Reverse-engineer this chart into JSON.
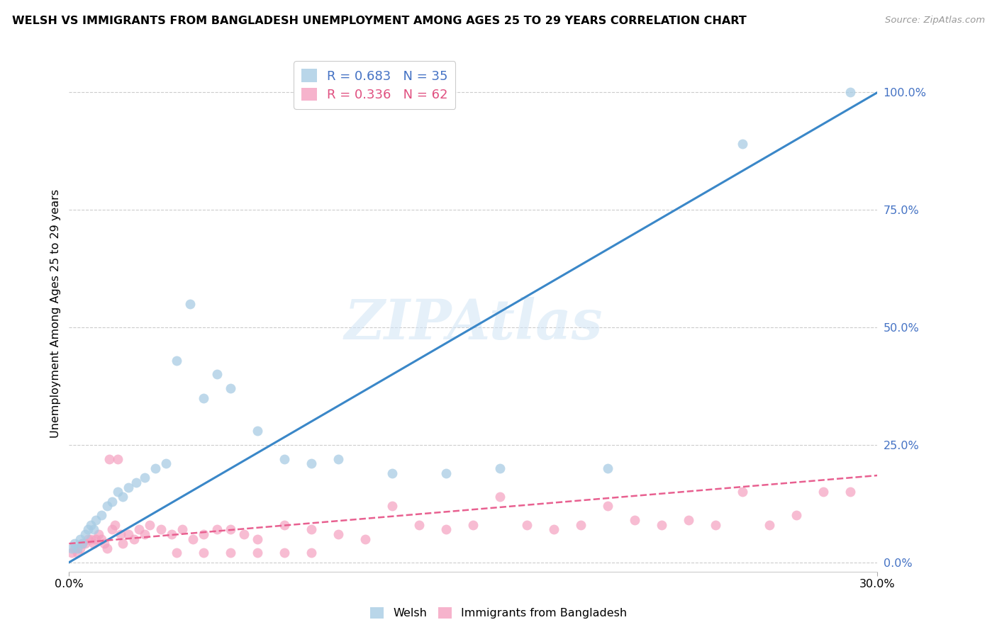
{
  "title": "WELSH VS IMMIGRANTS FROM BANGLADESH UNEMPLOYMENT AMONG AGES 25 TO 29 YEARS CORRELATION CHART",
  "source": "Source: ZipAtlas.com",
  "ylabel": "Unemployment Among Ages 25 to 29 years",
  "xlim": [
    0.0,
    0.3
  ],
  "ylim": [
    -0.02,
    1.08
  ],
  "welsh_R": 0.683,
  "welsh_N": 35,
  "bangladesh_R": 0.336,
  "bangladesh_N": 62,
  "welsh_color": "#a8cce4",
  "bangladesh_color": "#f4a0c0",
  "welsh_line_color": "#3a87c8",
  "bangladesh_line_color": "#e86090",
  "watermark": "ZIPAtlas",
  "welsh_line_x0": 0.0,
  "welsh_line_y0": 0.0,
  "welsh_line_x1": 0.3,
  "welsh_line_y1": 1.0,
  "bangladesh_line_x0": 0.0,
  "bangladesh_line_y0": 0.04,
  "bangladesh_line_x1": 0.3,
  "bangladesh_line_y1": 0.185,
  "welsh_x": [
    0.001,
    0.002,
    0.003,
    0.004,
    0.005,
    0.006,
    0.007,
    0.008,
    0.009,
    0.01,
    0.012,
    0.014,
    0.016,
    0.018,
    0.02,
    0.022,
    0.025,
    0.028,
    0.032,
    0.036,
    0.04,
    0.045,
    0.05,
    0.055,
    0.06,
    0.07,
    0.08,
    0.09,
    0.1,
    0.12,
    0.14,
    0.16,
    0.2,
    0.25,
    0.29
  ],
  "welsh_y": [
    0.03,
    0.04,
    0.03,
    0.05,
    0.04,
    0.06,
    0.07,
    0.08,
    0.07,
    0.09,
    0.1,
    0.12,
    0.13,
    0.15,
    0.14,
    0.16,
    0.17,
    0.18,
    0.2,
    0.21,
    0.43,
    0.55,
    0.35,
    0.4,
    0.37,
    0.28,
    0.22,
    0.21,
    0.22,
    0.19,
    0.19,
    0.2,
    0.2,
    0.89,
    1.0
  ],
  "bangladesh_x": [
    0.001,
    0.002,
    0.003,
    0.004,
    0.005,
    0.006,
    0.007,
    0.008,
    0.009,
    0.01,
    0.011,
    0.012,
    0.013,
    0.014,
    0.015,
    0.016,
    0.017,
    0.018,
    0.019,
    0.02,
    0.022,
    0.024,
    0.026,
    0.028,
    0.03,
    0.034,
    0.038,
    0.042,
    0.046,
    0.05,
    0.055,
    0.06,
    0.065,
    0.07,
    0.08,
    0.09,
    0.1,
    0.11,
    0.12,
    0.13,
    0.14,
    0.15,
    0.16,
    0.17,
    0.18,
    0.19,
    0.2,
    0.21,
    0.22,
    0.23,
    0.24,
    0.25,
    0.26,
    0.27,
    0.28,
    0.29,
    0.04,
    0.05,
    0.06,
    0.07,
    0.08,
    0.09
  ],
  "bangladesh_y": [
    0.02,
    0.03,
    0.02,
    0.03,
    0.04,
    0.04,
    0.05,
    0.05,
    0.04,
    0.05,
    0.06,
    0.05,
    0.04,
    0.03,
    0.22,
    0.07,
    0.08,
    0.22,
    0.06,
    0.04,
    0.06,
    0.05,
    0.07,
    0.06,
    0.08,
    0.07,
    0.06,
    0.07,
    0.05,
    0.06,
    0.07,
    0.07,
    0.06,
    0.05,
    0.08,
    0.07,
    0.06,
    0.05,
    0.12,
    0.08,
    0.07,
    0.08,
    0.14,
    0.08,
    0.07,
    0.08,
    0.12,
    0.09,
    0.08,
    0.09,
    0.08,
    0.15,
    0.08,
    0.1,
    0.15,
    0.15,
    0.02,
    0.02,
    0.02,
    0.02,
    0.02,
    0.02
  ]
}
